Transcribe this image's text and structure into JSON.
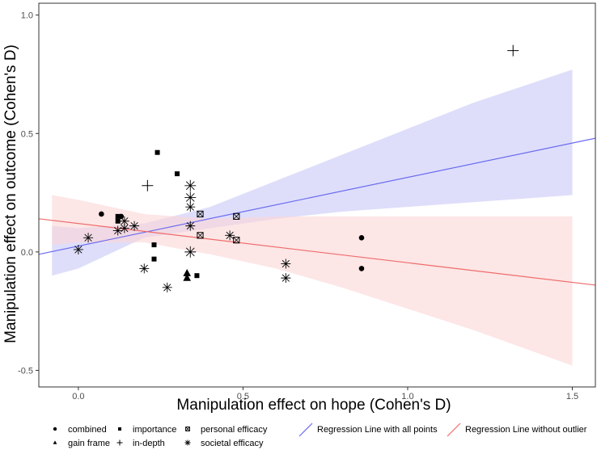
{
  "chart_data": {
    "type": "scatter",
    "title": "",
    "xlabel": "Manipulation effect on hope (Cohen's D)",
    "ylabel": "Manipulation effect on outcome (Cohen's D)",
    "xlim": [
      -0.12,
      1.57
    ],
    "ylim": [
      -0.57,
      1.05
    ],
    "xticks": [
      "0.0",
      "0.5",
      "1.0",
      "1.5"
    ],
    "xtick_values": [
      0,
      0.5,
      1.0,
      1.5
    ],
    "yticks": [
      "-0.5",
      "0.0",
      "0.5",
      "1.0"
    ],
    "ytick_values": [
      -0.5,
      0,
      0.5,
      1.0
    ],
    "grid": false,
    "legend_position": "bottom",
    "series": [
      {
        "name": "combined",
        "marker": "circle",
        "points": [
          [
            0.07,
            0.16
          ],
          [
            0.13,
            0.15
          ],
          [
            0.86,
            0.06
          ],
          [
            0.86,
            -0.07
          ]
        ]
      },
      {
        "name": "importance",
        "marker": "square",
        "points": [
          [
            0.12,
            0.15
          ],
          [
            0.24,
            0.42
          ],
          [
            0.3,
            0.33
          ],
          [
            0.12,
            0.13
          ],
          [
            0.23,
            0.03
          ],
          [
            0.23,
            -0.03
          ],
          [
            0.36,
            -0.1
          ]
        ]
      },
      {
        "name": "personal efficacy",
        "marker": "boxtimes",
        "points": [
          [
            0.37,
            0.16
          ],
          [
            0.37,
            0.07
          ],
          [
            0.48,
            0.15
          ],
          [
            0.48,
            0.05
          ]
        ]
      },
      {
        "name": "gain frame",
        "marker": "triangle",
        "points": [
          [
            0.33,
            -0.09
          ],
          [
            0.33,
            -0.11
          ]
        ]
      },
      {
        "name": "in-depth",
        "marker": "plus",
        "points": [
          [
            0.21,
            0.28
          ],
          [
            1.32,
            0.85
          ]
        ]
      },
      {
        "name": "societal efficacy",
        "marker": "asterisk",
        "points": [
          [
            0.0,
            0.01
          ],
          [
            0.03,
            0.06
          ],
          [
            0.12,
            0.09
          ],
          [
            0.14,
            0.1
          ],
          [
            0.14,
            0.13
          ],
          [
            0.17,
            0.11
          ],
          [
            0.2,
            -0.07
          ],
          [
            0.27,
            -0.15
          ],
          [
            0.34,
            0.28
          ],
          [
            0.34,
            0.23
          ],
          [
            0.34,
            0.19
          ],
          [
            0.34,
            0.11
          ],
          [
            0.34,
            0.0
          ],
          [
            0.46,
            0.07
          ],
          [
            0.63,
            -0.05
          ],
          [
            0.63,
            -0.11
          ]
        ]
      }
    ],
    "regression_lines": [
      {
        "name": "Regression Line with all points",
        "color": "#6b6bef",
        "band_color": "#c8c8f8",
        "x": [
          -0.12,
          1.57
        ],
        "y": [
          -0.01,
          0.48
        ],
        "band_x": [
          -0.08,
          0.0,
          0.2,
          0.4,
          0.6,
          0.8,
          1.0,
          1.2,
          1.5
        ],
        "band_upper": [
          0.11,
          0.1,
          0.12,
          0.19,
          0.3,
          0.41,
          0.52,
          0.63,
          0.77
        ],
        "band_lower": [
          -0.1,
          -0.07,
          0.06,
          0.1,
          0.14,
          0.17,
          0.19,
          0.21,
          0.24
        ]
      },
      {
        "name": "Regression Line without outlier",
        "color": "#ef6b6b",
        "band_color": "#fbd6d6",
        "x": [
          -0.12,
          1.57
        ],
        "y": [
          0.14,
          -0.14
        ],
        "band_x": [
          -0.08,
          0.0,
          0.2,
          0.4,
          0.6,
          0.8,
          1.0,
          1.2,
          1.5
        ],
        "band_upper": [
          0.24,
          0.22,
          0.16,
          0.14,
          0.15,
          0.15,
          0.15,
          0.15,
          0.15
        ],
        "band_lower": [
          0.03,
          0.04,
          0.04,
          -0.01,
          -0.07,
          -0.15,
          -0.24,
          -0.33,
          -0.48
        ]
      }
    ]
  }
}
